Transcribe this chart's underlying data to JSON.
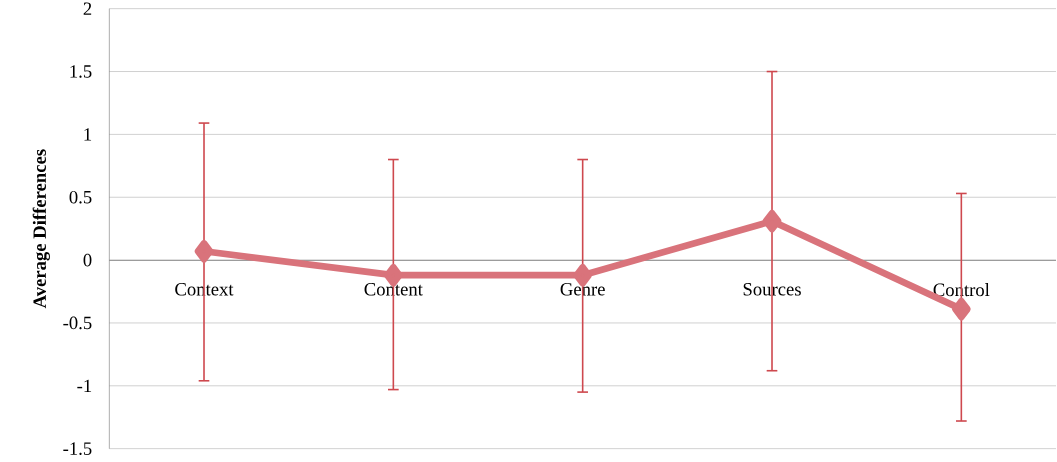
{
  "chart_data": {
    "type": "line",
    "ylabel": "Average Differences",
    "categories": [
      "Context",
      "Content",
      "Genre",
      "Sources",
      "Control"
    ],
    "series": [
      {
        "color": "#d9737b",
        "values": [
          0.07,
          -0.12,
          -0.12,
          0.31,
          -0.39
        ],
        "errors": [
          [
            -0.96,
            1.09
          ],
          [
            -1.03,
            0.8
          ],
          [
            -1.05,
            0.8
          ],
          [
            -0.88,
            1.5
          ],
          [
            -1.28,
            0.53
          ]
        ]
      }
    ],
    "ylim": [
      -1.5,
      2
    ],
    "yticks": [
      -1.5,
      -1,
      -0.5,
      0,
      0.5,
      1,
      1.5,
      2
    ],
    "grid": "y",
    "marker": "diamond",
    "line_style": "solid"
  }
}
